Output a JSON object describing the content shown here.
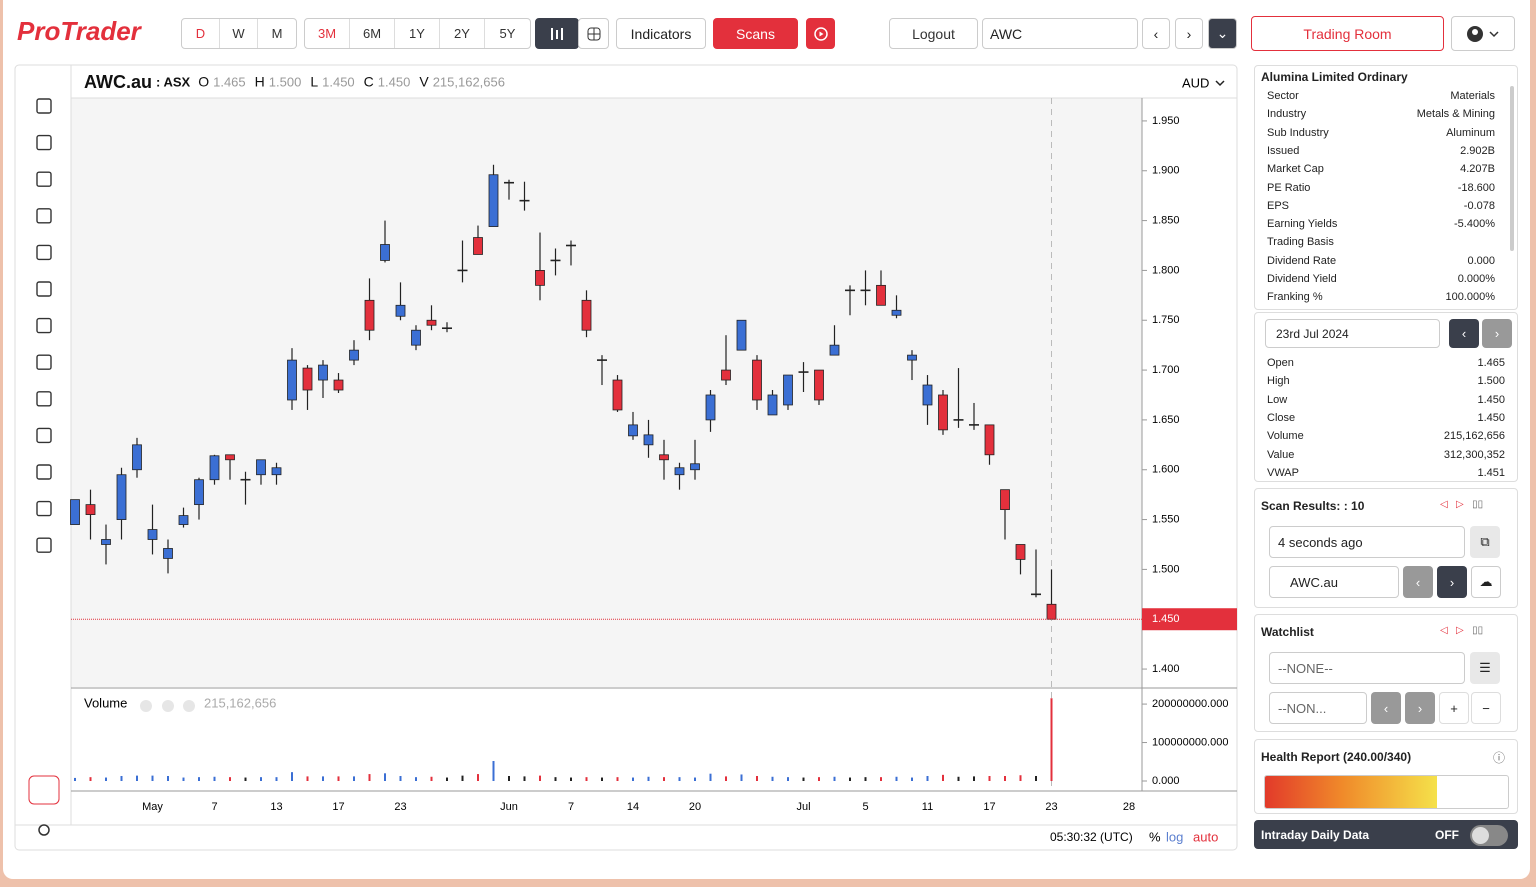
{
  "toolbar": {
    "logo": "ProTrader",
    "periods": [
      "D",
      "W",
      "M"
    ],
    "ranges": [
      "3M",
      "6M",
      "1Y",
      "2Y",
      "5Y"
    ],
    "indicators": "Indicators",
    "scans": "Scans",
    "logout": "Logout",
    "symbol": "AWC",
    "trading_room": "Trading Room"
  },
  "chart_data": {
    "type": "candlestick",
    "symbol": "AWC.au",
    "exchange": ": ASX",
    "currency": "AUD",
    "fields": [
      {
        "key": "O",
        "value": "1.465"
      },
      {
        "key": "H",
        "value": "1.500"
      },
      {
        "key": "L",
        "value": "1.450"
      },
      {
        "key": "C",
        "value": "1.450"
      },
      {
        "key": "V",
        "value": "215,162,656"
      }
    ],
    "up_color": "#3b6fd4",
    "down_color": "#e3303c",
    "flat_color": "#222222",
    "categories": [
      null,
      null,
      null,
      null,
      null,
      "May",
      null,
      null,
      null,
      "7",
      null,
      null,
      null,
      "13",
      null,
      null,
      null,
      "17",
      null,
      null,
      null,
      "23",
      null,
      null,
      null,
      null,
      null,
      null,
      "Jun",
      null,
      null,
      null,
      "7",
      null,
      null,
      null,
      "14",
      null,
      null,
      null,
      "20",
      null,
      null,
      null,
      null,
      null,
      null,
      "Jul",
      null,
      null,
      null,
      "5",
      null,
      null,
      null,
      "11",
      null,
      null,
      null,
      "17",
      null,
      null,
      null,
      "23",
      null,
      null,
      null,
      null,
      "28"
    ],
    "open": [
      1.545,
      1.565,
      1.525,
      1.55,
      1.6,
      1.53,
      1.511,
      1.545,
      1.565,
      1.59,
      1.615,
      1.59,
      1.595,
      1.595,
      1.67,
      1.702,
      1.69,
      1.69,
      1.71,
      1.77,
      1.81,
      1.754,
      1.725,
      1.75,
      1.742,
      1.8,
      1.833,
      1.844,
      1.888,
      1.87,
      1.8,
      1.81,
      1.825,
      1.77,
      1.71,
      1.69,
      1.634,
      1.625,
      1.615,
      1.595,
      1.6,
      1.65,
      1.7,
      1.72,
      1.71,
      1.655,
      1.665,
      1.698,
      1.7,
      1.715,
      1.78,
      1.78,
      1.785,
      1.755,
      1.71,
      1.665,
      1.675,
      1.65,
      1.645,
      1.645,
      1.58,
      1.525,
      1.475,
      1.465,
      null,
      null,
      null,
      null,
      null
    ],
    "high": [
      1.57,
      1.58,
      1.545,
      1.602,
      1.632,
      1.565,
      1.53,
      1.562,
      1.592,
      1.615,
      1.615,
      1.598,
      1.61,
      1.607,
      1.722,
      1.705,
      1.71,
      1.697,
      1.73,
      1.792,
      1.85,
      1.788,
      1.745,
      1.765,
      1.748,
      1.83,
      1.845,
      1.906,
      1.891,
      1.889,
      1.838,
      1.822,
      1.83,
      1.78,
      1.715,
      1.695,
      1.658,
      1.65,
      1.63,
      1.607,
      1.63,
      1.68,
      1.735,
      1.75,
      1.715,
      1.68,
      1.695,
      1.708,
      1.7,
      1.745,
      1.785,
      1.8,
      1.8,
      1.775,
      1.72,
      1.695,
      1.68,
      1.702,
      1.667,
      1.645,
      1.58,
      1.525,
      1.52,
      1.5,
      null,
      null,
      null,
      null,
      null
    ],
    "low": [
      1.545,
      1.53,
      1.505,
      1.53,
      1.592,
      1.515,
      1.496,
      1.542,
      1.55,
      1.585,
      1.59,
      1.565,
      1.585,
      1.585,
      1.66,
      1.66,
      1.672,
      1.677,
      1.705,
      1.73,
      1.808,
      1.75,
      1.72,
      1.74,
      1.738,
      1.788,
      1.816,
      1.844,
      1.871,
      1.86,
      1.77,
      1.795,
      1.805,
      1.733,
      1.685,
      1.658,
      1.63,
      1.612,
      1.59,
      1.58,
      1.59,
      1.638,
      1.685,
      1.72,
      1.66,
      1.655,
      1.66,
      1.678,
      1.665,
      1.715,
      1.755,
      1.765,
      1.765,
      1.752,
      1.69,
      1.645,
      1.635,
      1.642,
      1.64,
      1.605,
      1.53,
      1.495,
      1.472,
      1.45,
      null,
      null,
      null,
      null,
      null
    ],
    "close": [
      1.57,
      1.555,
      1.53,
      1.595,
      1.625,
      1.54,
      1.521,
      1.554,
      1.59,
      1.614,
      1.61,
      1.59,
      1.61,
      1.602,
      1.71,
      1.68,
      1.705,
      1.68,
      1.72,
      1.74,
      1.826,
      1.765,
      1.74,
      1.745,
      1.742,
      1.8,
      1.816,
      1.896,
      1.888,
      1.87,
      1.785,
      1.81,
      1.825,
      1.74,
      1.71,
      1.66,
      1.645,
      1.635,
      1.61,
      1.602,
      1.606,
      1.675,
      1.69,
      1.75,
      1.67,
      1.675,
      1.695,
      1.698,
      1.67,
      1.725,
      1.78,
      1.78,
      1.765,
      1.76,
      1.715,
      1.685,
      1.64,
      1.65,
      1.645,
      1.615,
      1.56,
      1.51,
      1.475,
      1.45,
      null,
      null,
      null,
      null,
      null
    ],
    "volume": [
      8000000,
      10000000,
      9000000,
      13000000,
      14000000,
      14000000,
      13000000,
      9000000,
      10000000,
      11000000,
      10000000,
      9000000,
      10000000,
      10000000,
      23000000,
      12000000,
      12000000,
      12000000,
      12000000,
      18000000,
      20000000,
      13000000,
      10000000,
      11000000,
      9000000,
      14000000,
      18000000,
      52000000,
      13000000,
      12000000,
      14000000,
      10000000,
      9000000,
      10000000,
      9000000,
      10000000,
      9000000,
      11000000,
      10000000,
      10000000,
      9000000,
      19000000,
      12000000,
      17000000,
      13000000,
      11000000,
      10000000,
      9000000,
      10000000,
      11000000,
      9000000,
      10000000,
      10000000,
      11000000,
      9000000,
      13000000,
      16000000,
      11000000,
      12000000,
      13000000,
      13000000,
      15000000,
      13000000,
      215162656,
      null,
      null,
      null,
      null,
      null
    ],
    "ylim": [
      1.382,
      1.973
    ],
    "yticks": [
      {
        "value": 1.95,
        "label": "1.950"
      },
      {
        "value": 1.9,
        "label": "1.900"
      },
      {
        "value": 1.85,
        "label": "1.850"
      },
      {
        "value": 1.8,
        "label": "1.800"
      },
      {
        "value": 1.75,
        "label": "1.750"
      },
      {
        "value": 1.7,
        "label": "1.700"
      },
      {
        "value": 1.65,
        "label": "1.650"
      },
      {
        "value": 1.6,
        "label": "1.600"
      },
      {
        "value": 1.55,
        "label": "1.550"
      },
      {
        "value": 1.5,
        "label": "1.500"
      },
      {
        "value": 1.45,
        "label": "1.450"
      },
      {
        "value": 1.4,
        "label": "1.400"
      }
    ],
    "last_price": {
      "value": 1.45,
      "label": "1.450"
    },
    "volume_title": "Volume",
    "volume_value": "215,162,656",
    "volume_lim": [
      -26000000,
      234000000
    ],
    "volume_ticks": [
      {
        "value": 200000000,
        "label": "200000000.000"
      },
      {
        "value": 100000000,
        "label": "100000000.000"
      },
      {
        "value": 0,
        "label": "0.000"
      }
    ]
  },
  "status": {
    "time": "05:30:32 (UTC)",
    "pct": "%",
    "log": "log",
    "auto": "auto"
  },
  "info": {
    "title": "Alumina Limited Ordinary",
    "rows": [
      [
        "Sector",
        "Materials"
      ],
      [
        "Industry",
        "Metals & Mining"
      ],
      [
        "Sub Industry",
        "Aluminum"
      ],
      [
        "Issued",
        "2.902B"
      ],
      [
        "Market Cap",
        "4.207B"
      ],
      [
        "PE Ratio",
        "-18.600"
      ],
      [
        "EPS",
        "-0.078"
      ],
      [
        "Earning Yields",
        "-5.400%"
      ],
      [
        "Trading Basis",
        ""
      ],
      [
        "Dividend Rate",
        "0.000"
      ],
      [
        "Dividend Yield",
        "0.000%"
      ],
      [
        "Franking %",
        "100.000%"
      ]
    ]
  },
  "quote": {
    "date": "23rd Jul 2024",
    "rows": [
      [
        "Open",
        "1.465"
      ],
      [
        "High",
        "1.500"
      ],
      [
        "Low",
        "1.450"
      ],
      [
        "Close",
        "1.450"
      ],
      [
        "Volume",
        "215,162,656"
      ],
      [
        "Value",
        "312,300,352"
      ],
      [
        "VWAP",
        "1.451"
      ]
    ]
  },
  "scan": {
    "title": "Scan Results: : 10",
    "time": "4 seconds ago",
    "symbol": "AWC.au"
  },
  "watchlist": {
    "title": "Watchlist",
    "list": "--NONE--",
    "sub": "--NON..."
  },
  "health": {
    "title": "Health Report (240.00/340)",
    "score": 240,
    "max": 340
  },
  "intraday": {
    "title": "Intraday Daily Data",
    "state": "OFF"
  }
}
